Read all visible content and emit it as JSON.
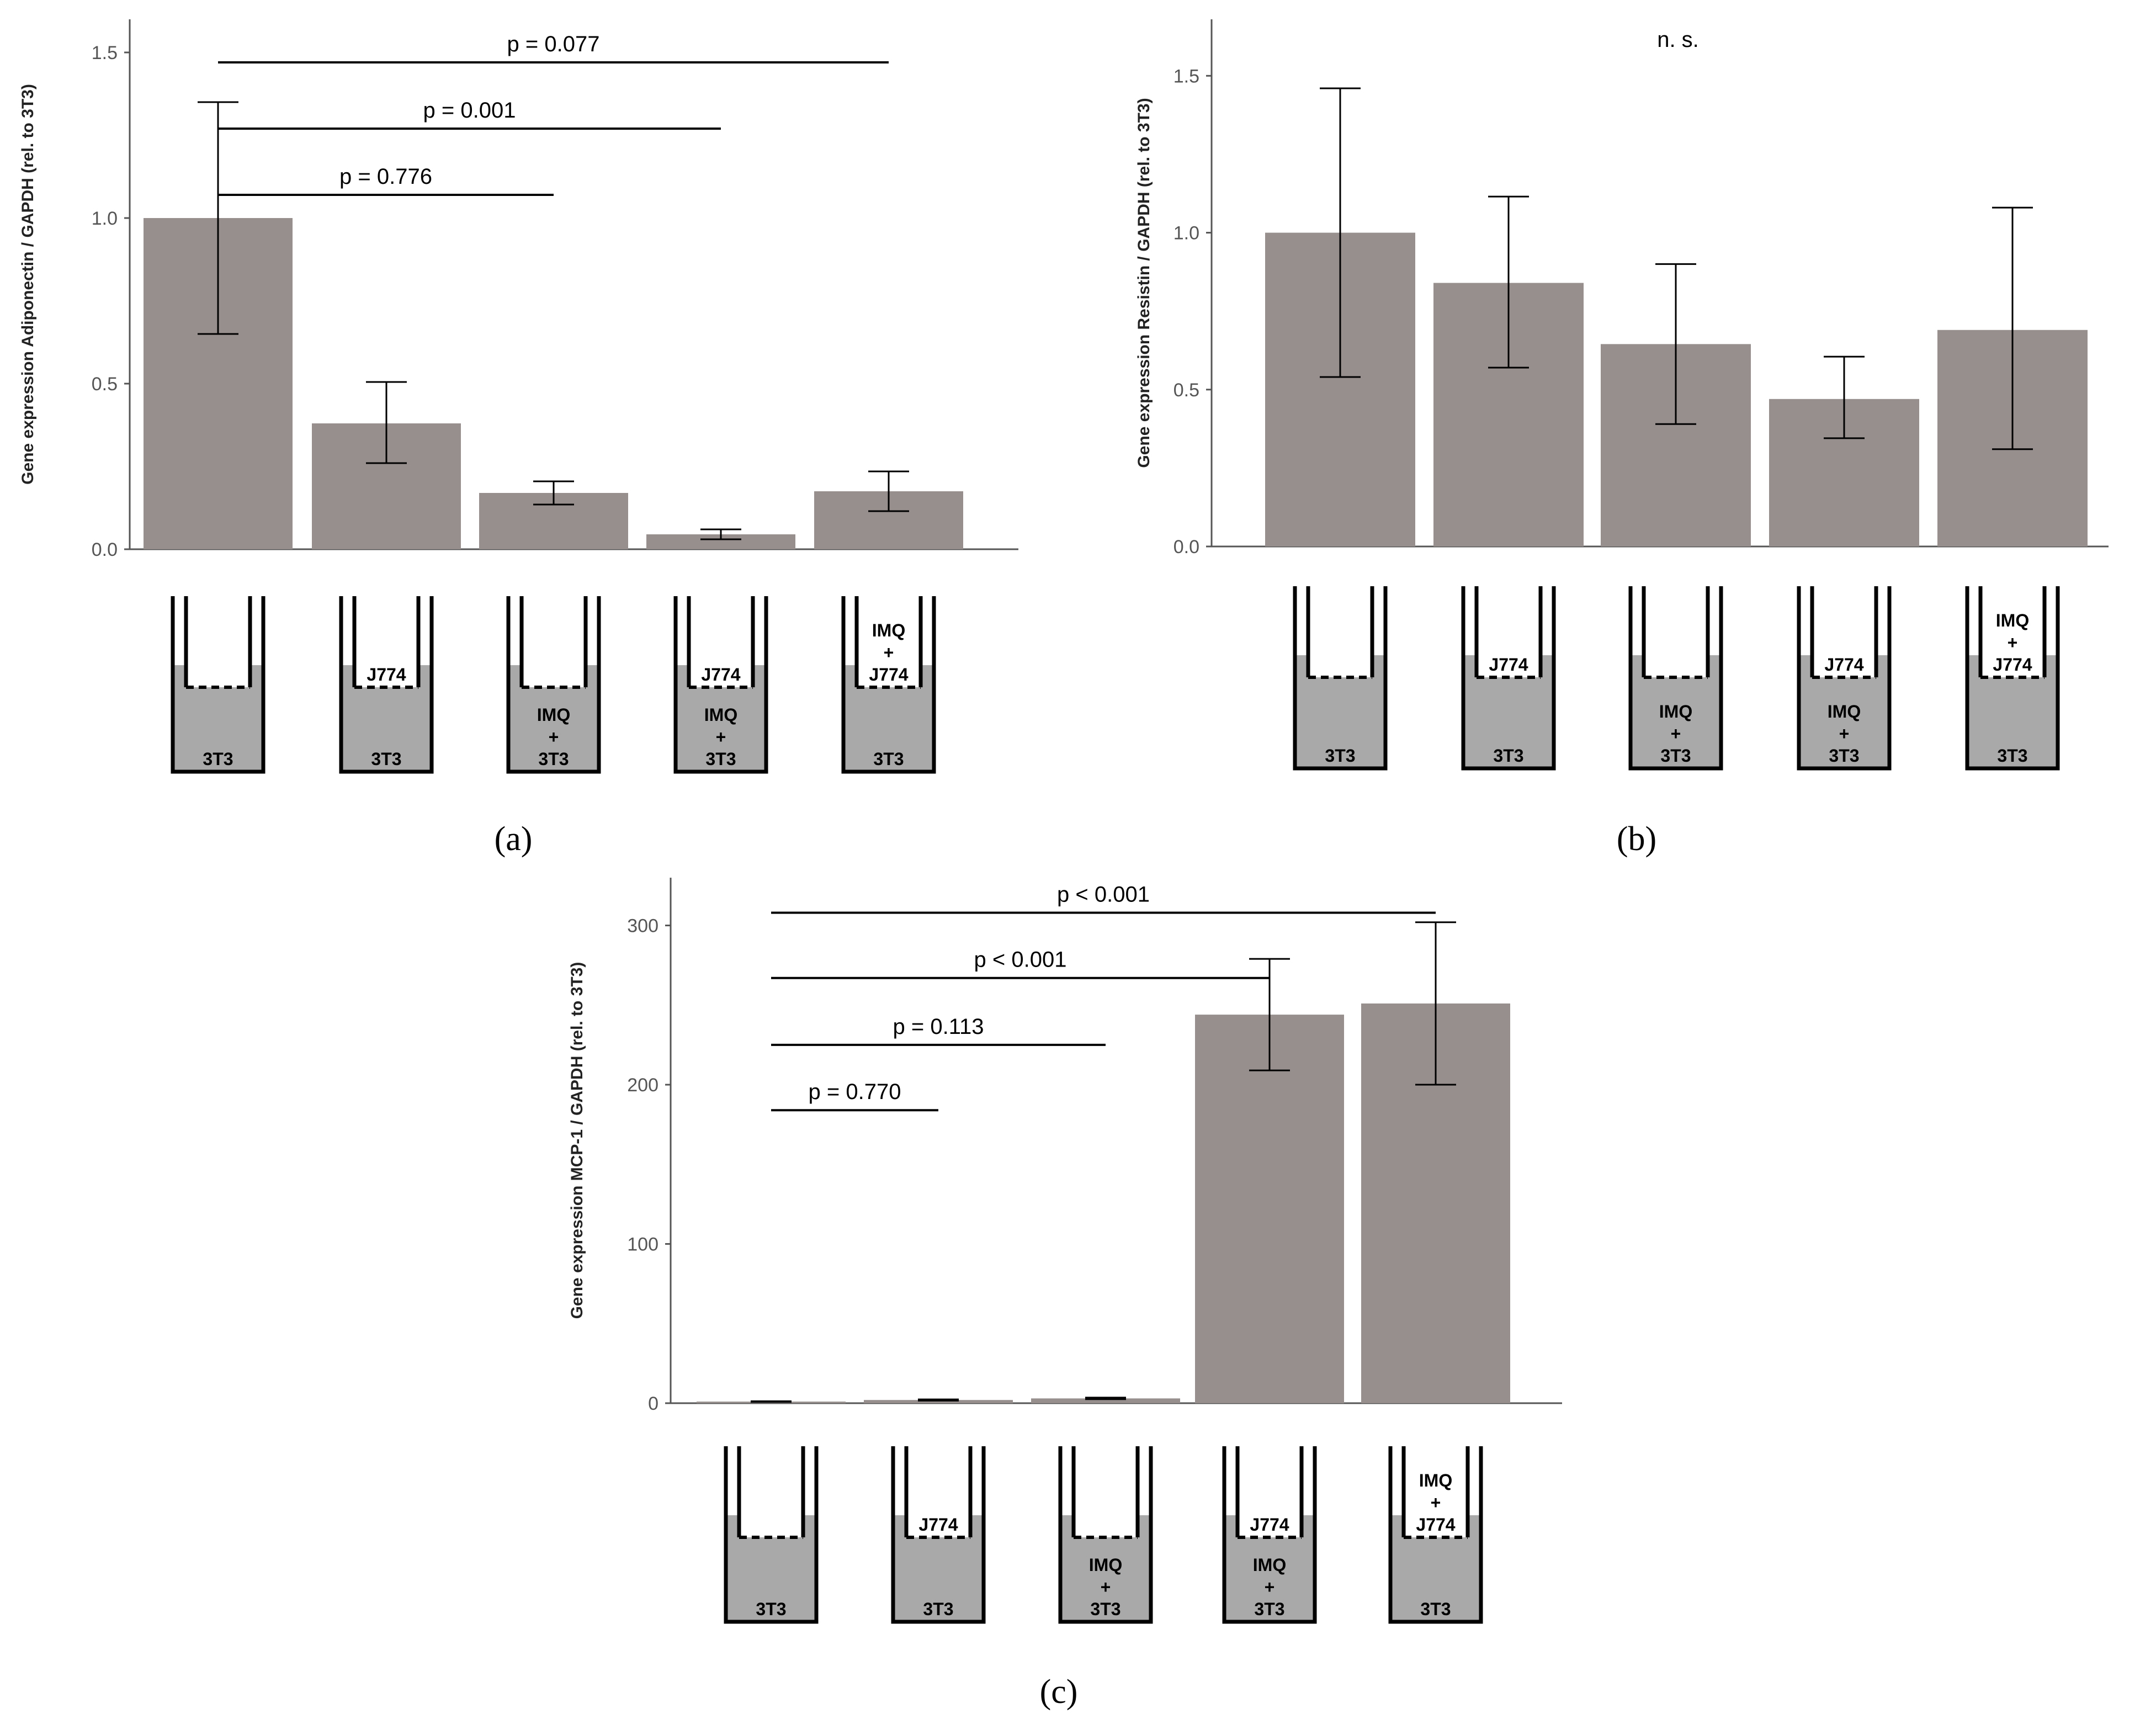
{
  "colors": {
    "bar": "#968f8e",
    "well_fill": "#a9a9a9",
    "axis": "#555555",
    "line": "#000000"
  },
  "chart_data": [
    {
      "panel_label": "(a)",
      "type": "bar",
      "ylabel": "Gene expression Adiponectin / GAPDH (rel. to 3T3)",
      "ylim": [
        0,
        1.6
      ],
      "yticks": [
        0,
        0.5,
        1,
        1.5
      ],
      "ytick_labels": [
        "0.0",
        "0.5",
        "1.0",
        "1.5"
      ],
      "categories": [
        "3T3",
        "J774 / 3T3",
        "IMQ + 3T3",
        "J774 / IMQ + 3T3",
        "IMQ + J774 / 3T3"
      ],
      "values": [
        1.0,
        0.38,
        0.17,
        0.045,
        0.175
      ],
      "err_low": [
        0.65,
        0.26,
        0.135,
        0.03,
        0.115
      ],
      "err_high": [
        1.35,
        0.505,
        0.205,
        0.06,
        0.235
      ],
      "significance": [
        {
          "from": 0,
          "to": 4,
          "y": 1.47,
          "label": "p = 0.077"
        },
        {
          "from": 0,
          "to": 3,
          "y": 1.27,
          "label": "p = 0.001"
        },
        {
          "from": 0,
          "to": 2,
          "y": 1.07,
          "label": "p = 0.776"
        }
      ],
      "wells": [
        {
          "insert": [],
          "bottom": [
            "3T3"
          ]
        },
        {
          "insert": [
            "J774"
          ],
          "bottom": [
            "3T3"
          ]
        },
        {
          "insert": [],
          "bottom": [
            "IMQ",
            "+",
            "3T3"
          ]
        },
        {
          "insert": [
            "J774"
          ],
          "bottom": [
            "IMQ",
            "+",
            "3T3"
          ]
        },
        {
          "insert": [
            "IMQ",
            "+",
            "J774"
          ],
          "bottom": [
            "3T3"
          ]
        }
      ]
    },
    {
      "panel_label": "(b)",
      "type": "bar",
      "ylabel": "Gene expression Resistin / GAPDH (rel. to 3T3)",
      "ylim": [
        0,
        1.68
      ],
      "yticks": [
        0,
        0.5,
        1,
        1.5
      ],
      "ytick_labels": [
        "0.0",
        "0.5",
        "1.0",
        "1.5"
      ],
      "categories": [
        "3T3",
        "J774 / 3T3",
        "IMQ + 3T3",
        "J774 / IMQ + 3T3",
        "IMQ + J774 / 3T3"
      ],
      "values": [
        1.0,
        0.84,
        0.645,
        0.47,
        0.69
      ],
      "err_low": [
        0.54,
        0.57,
        0.39,
        0.345,
        0.31
      ],
      "err_high": [
        1.46,
        1.115,
        0.9,
        0.605,
        1.08
      ],
      "annotation": "n. s.",
      "significance": [],
      "wells": [
        {
          "insert": [],
          "bottom": [
            "3T3"
          ]
        },
        {
          "insert": [
            "J774"
          ],
          "bottom": [
            "3T3"
          ]
        },
        {
          "insert": [],
          "bottom": [
            "IMQ",
            "+",
            "3T3"
          ]
        },
        {
          "insert": [
            "J774"
          ],
          "bottom": [
            "IMQ",
            "+",
            "3T3"
          ]
        },
        {
          "insert": [
            "IMQ",
            "+",
            "J774"
          ],
          "bottom": [
            "3T3"
          ]
        }
      ]
    },
    {
      "panel_label": "(c)",
      "type": "bar",
      "ylabel": "Gene expression MCP-1 / GAPDH (rel. to 3T3)",
      "ylim": [
        0,
        330
      ],
      "yticks": [
        0,
        100,
        200,
        300
      ],
      "ytick_labels": [
        "0",
        "100",
        "200",
        "300"
      ],
      "categories": [
        "3T3",
        "J774 / 3T3",
        "IMQ + 3T3",
        "J774 / IMQ + 3T3",
        "IMQ + J774 / 3T3"
      ],
      "values": [
        1,
        2,
        3,
        244,
        251
      ],
      "err_low": [
        0.8,
        1.6,
        2.5,
        209,
        200
      ],
      "err_high": [
        1.2,
        2.4,
        3.5,
        279,
        302
      ],
      "significance": [
        {
          "from": 0,
          "to": 4,
          "y": 308,
          "label": "p < 0.001"
        },
        {
          "from": 0,
          "to": 3,
          "y": 267,
          "label": "p < 0.001"
        },
        {
          "from": 0,
          "to": 2,
          "y": 225,
          "label": "p = 0.113"
        },
        {
          "from": 0,
          "to": 1,
          "y": 184,
          "label": "p = 0.770"
        }
      ],
      "wells": [
        {
          "insert": [],
          "bottom": [
            "3T3"
          ]
        },
        {
          "insert": [
            "J774"
          ],
          "bottom": [
            "3T3"
          ]
        },
        {
          "insert": [],
          "bottom": [
            "IMQ",
            "+",
            "3T3"
          ]
        },
        {
          "insert": [
            "J774"
          ],
          "bottom": [
            "IMQ",
            "+",
            "3T3"
          ]
        },
        {
          "insert": [
            "IMQ",
            "+",
            "J774"
          ],
          "bottom": [
            "3T3"
          ]
        }
      ]
    }
  ]
}
